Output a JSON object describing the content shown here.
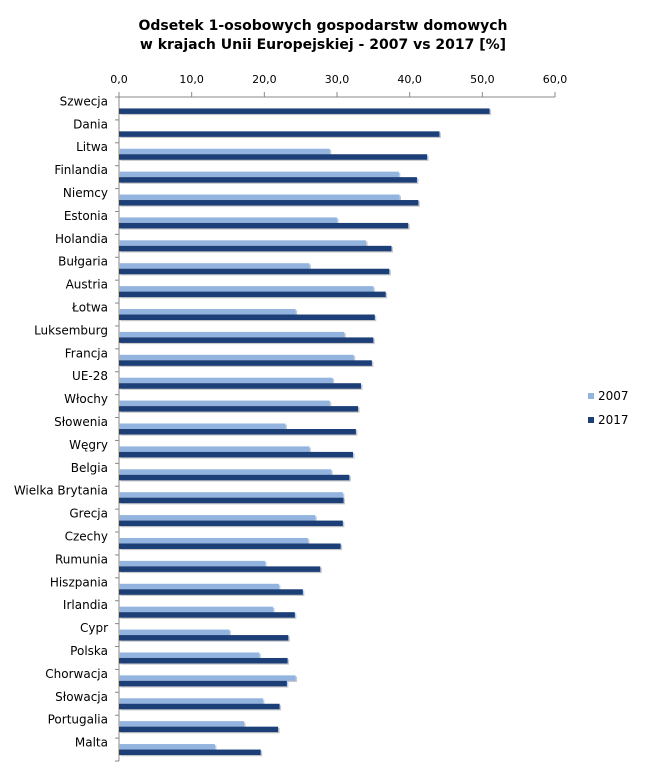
{
  "chart_data": {
    "type": "bar",
    "orientation": "horizontal",
    "title_lines": [
      "Odsetek 1-osobowych gospodarstw domowych",
      "w krajach Unii Europejskiej - 2007 vs 2017 [%]"
    ],
    "xlim": [
      0,
      60
    ],
    "x_ticks": [
      0,
      10,
      20,
      30,
      40,
      50,
      60
    ],
    "x_tick_labels": [
      "0,0",
      "10,0",
      "20,0",
      "30,0",
      "40,0",
      "50,0",
      "60,0"
    ],
    "axis_position": "top",
    "grid": false,
    "legend_placement": "right",
    "categories": [
      "Szwecja",
      "Dania",
      "Litwa",
      "Finlandia",
      "Niemcy",
      "Estonia",
      "Holandia",
      "Bułgaria",
      "Austria",
      "Łotwa",
      "Luksemburg",
      "Francja",
      "UE-28",
      "Włochy",
      "Słowenia",
      "Węgry",
      "Belgia",
      "Wielka Brytania",
      "Grecja",
      "Czechy",
      "Rumunia",
      "Hiszpania",
      "Irlandia",
      "Cypr",
      "Polska",
      "Chorwacja",
      "Słowacja",
      "Portugalia",
      "Malta"
    ],
    "series": [
      {
        "name": "2007",
        "color": "#93b4de",
        "values": [
          null,
          null,
          29,
          38.5,
          38.6,
          30,
          34,
          26.2,
          35,
          24.3,
          31,
          32.3,
          29.4,
          29,
          22.9,
          26.2,
          29.2,
          30.8,
          27,
          26,
          20.1,
          22,
          21.2,
          15.2,
          19.3,
          24.3,
          19.8,
          17.2,
          13.2
        ]
      },
      {
        "name": "2017",
        "color": "#1d3f78",
        "values": [
          51,
          44.1,
          42.4,
          41,
          41.2,
          39.8,
          37.5,
          37.2,
          36.7,
          35.2,
          35,
          34.8,
          33.3,
          32.9,
          32.6,
          32.2,
          31.7,
          30.9,
          30.8,
          30.5,
          27.7,
          25.3,
          24.2,
          23.3,
          23.2,
          23.1,
          22.1,
          21.9,
          19.5
        ]
      }
    ]
  }
}
